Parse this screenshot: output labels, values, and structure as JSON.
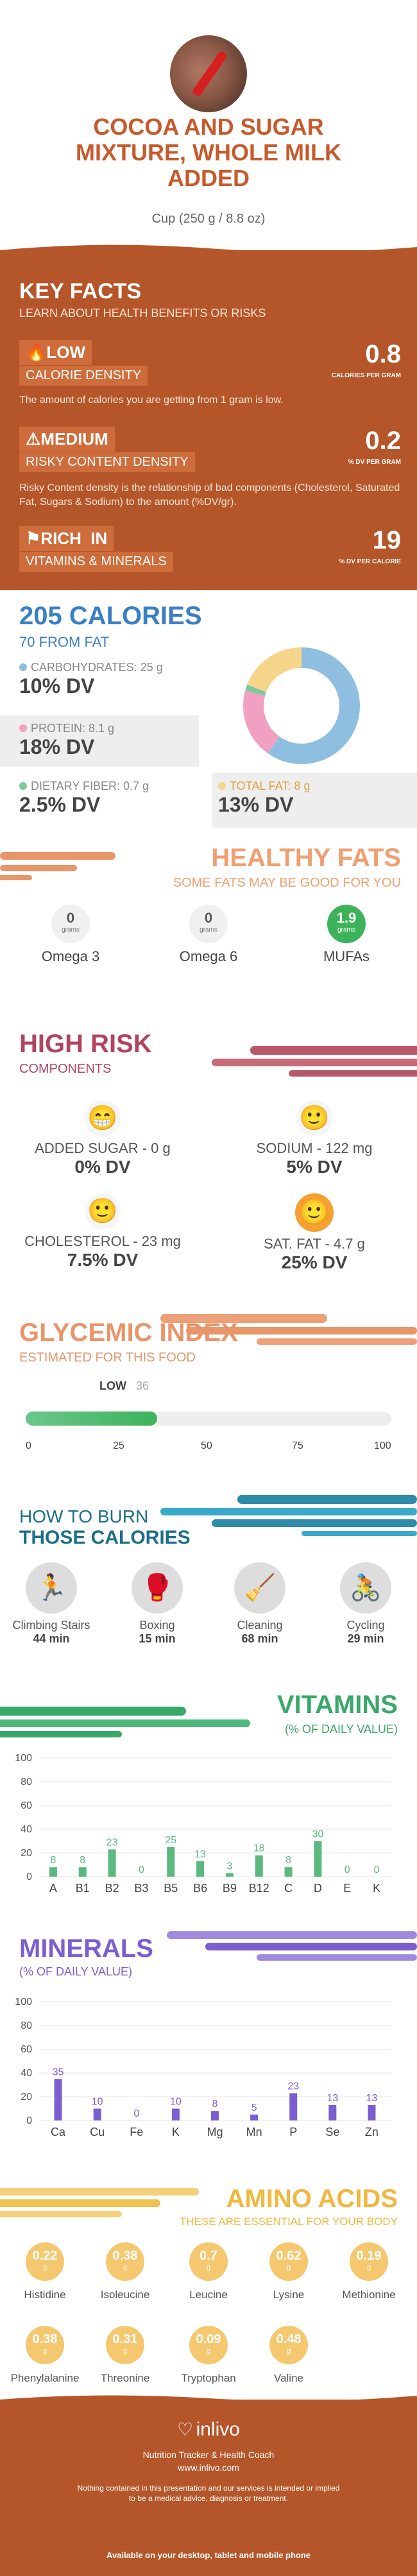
{
  "header": {
    "title_lines": [
      "COCOA AND SUGAR",
      "MIXTURE, WHOLE MILK",
      "ADDED"
    ],
    "serving": "Cup (250 g / 8.8 oz)"
  },
  "key_facts": {
    "title": "KEY FACTS",
    "subtitle": "LEARN ABOUT HEALTH BENEFITS OR RISKS",
    "items": [
      {
        "level": "LOW",
        "name": "CALORIE DENSITY",
        "value": "0.8",
        "unit": "CALORIES PER GRAM",
        "desc": "The amount of calories you are getting from 1 gram is low."
      },
      {
        "level": "MEDIUM",
        "name": "RISKY CONTENT DENSITY",
        "value": "0.2",
        "unit": "% DV PER GRAM",
        "desc": "Risky Content density is the relationship of bad components (Cholesterol, Saturated Fat, Sugars & Sodium) to the amount (%DV/gr)."
      },
      {
        "level": "RICH  IN",
        "name": "VITAMINS & MINERALS",
        "value": "19",
        "unit": "% DV PER CALORIE",
        "desc": ""
      }
    ]
  },
  "calories": {
    "title": "205 CALORIES",
    "subtitle": "70 FROM FAT",
    "macros": [
      {
        "label": "CARBOHYDRATES: 25 g",
        "dv": "10% DV",
        "color": "#8fbfe0",
        "value": 25
      },
      {
        "label": "PROTEIN: 8.1 g",
        "dv": "18% DV",
        "color": "#f0a0c0",
        "value": 8.1
      },
      {
        "label": "DIETARY FIBER: 0.7 g",
        "dv": "2.5% DV",
        "color": "#7cc9a0",
        "value": 0.7
      },
      {
        "label": "TOTAL FAT: 8 g",
        "dv": "13% DV",
        "color": "#f5d58a",
        "value": 8
      }
    ]
  },
  "healthy_fats": {
    "title": "HEALTHY FATS",
    "subtitle": "SOME FATS MAY BE GOOD FOR YOU",
    "items": [
      {
        "value": "0",
        "unit": "grams",
        "label": "Omega 3"
      },
      {
        "value": "0",
        "unit": "grams",
        "label": "Omega 6"
      },
      {
        "value": "1.9",
        "unit": "grams",
        "label": "MUFAs"
      }
    ]
  },
  "high_risk": {
    "title": "HIGH RISK",
    "subtitle": "COMPONENTS",
    "items": [
      {
        "label": "ADDED SUGAR - 0 g",
        "dv": "0% DV",
        "face": "grin-icon"
      },
      {
        "label": "SODIUM - 122 mg",
        "dv": "5% DV",
        "face": "smile-icon"
      },
      {
        "label": "CHOLESTEROL - 23 mg",
        "dv": "7.5% DV",
        "face": "smile-icon"
      },
      {
        "label": "SAT. FAT - 4.7 g",
        "dv": "25% DV",
        "face": "neutral-smile-icon"
      }
    ]
  },
  "glycemic": {
    "title": "GLYCEMIC INDEX",
    "subtitle": "ESTIMATED FOR THIS FOOD",
    "level": "LOW",
    "value": 36,
    "ticks": [
      "0",
      "25",
      "50",
      "75",
      "100"
    ]
  },
  "burn": {
    "title1": "HOW TO BURN",
    "title2": "THOSE CALORIES",
    "items": [
      {
        "label": "Climbing Stairs",
        "time": "44 min",
        "icon": "stairs-icon"
      },
      {
        "label": "Boxing",
        "time": "15 min",
        "icon": "boxing-icon"
      },
      {
        "label": "Cleaning",
        "time": "68 min",
        "icon": "cleaning-icon"
      },
      {
        "label": "Cycling",
        "time": "29 min",
        "icon": "cycling-icon"
      }
    ]
  },
  "vitamins": {
    "title": "VITAMINS",
    "subtitle": "(% OF DAILY VALUE)",
    "chart_data": {
      "type": "bar",
      "categories": [
        "A",
        "B1",
        "B2",
        "B3",
        "B5",
        "B6",
        "B9",
        "B12",
        "C",
        "D",
        "E",
        "K"
      ],
      "values": [
        8,
        8,
        23,
        0,
        25,
        13,
        3,
        18,
        8,
        30,
        0,
        0
      ],
      "ylim": [
        0,
        100
      ],
      "yticks": [
        "0",
        "20",
        "40",
        "60",
        "80",
        "100"
      ],
      "color": "#5bb87e"
    }
  },
  "minerals": {
    "title": "MINERALS",
    "subtitle": "(% OF DAILY VALUE)",
    "chart_data": {
      "type": "bar",
      "categories": [
        "Ca",
        "Cu",
        "Fe",
        "K",
        "Mg",
        "Mn",
        "P",
        "Se",
        "Zn"
      ],
      "values": [
        35,
        10,
        0,
        10,
        8,
        5,
        23,
        13,
        13
      ],
      "ylim": [
        0,
        100
      ],
      "yticks": [
        "0",
        "20",
        "40",
        "60",
        "80",
        "100"
      ],
      "color": "#7b5fd0"
    }
  },
  "amino": {
    "title": "AMINO ACIDS",
    "subtitle": "THESE ARE ESSENTIAL FOR YOUR BODY",
    "items": [
      {
        "value": "0.22",
        "unit": "g",
        "label": "Histidine"
      },
      {
        "value": "0.38",
        "unit": "g",
        "label": "Isoleucine"
      },
      {
        "value": "0.7",
        "unit": "g",
        "label": "Leucine"
      },
      {
        "value": "0.62",
        "unit": "g",
        "label": "Lysine"
      },
      {
        "value": "0.19",
        "unit": "g",
        "label": "Methionine"
      },
      {
        "value": "0.38",
        "unit": "g",
        "label": "Phenylalanine"
      },
      {
        "value": "0.31",
        "unit": "g",
        "label": "Threonine"
      },
      {
        "value": "0.09",
        "unit": "g",
        "label": "Tryptophan"
      },
      {
        "value": "0.48",
        "unit": "g",
        "label": "Valine"
      }
    ]
  },
  "footer": {
    "brand": "inlivo",
    "tagline": "Nutrition Tracker & Health Coach",
    "url": "www.inlivo.com",
    "disclaimer_1": "Nothing contained in this presentation and our services is intended or implied",
    "disclaimer_2": "to be a medical advice, diagnosis or treatment.",
    "availability": "Available on your desktop, tablet and mobile phone"
  }
}
